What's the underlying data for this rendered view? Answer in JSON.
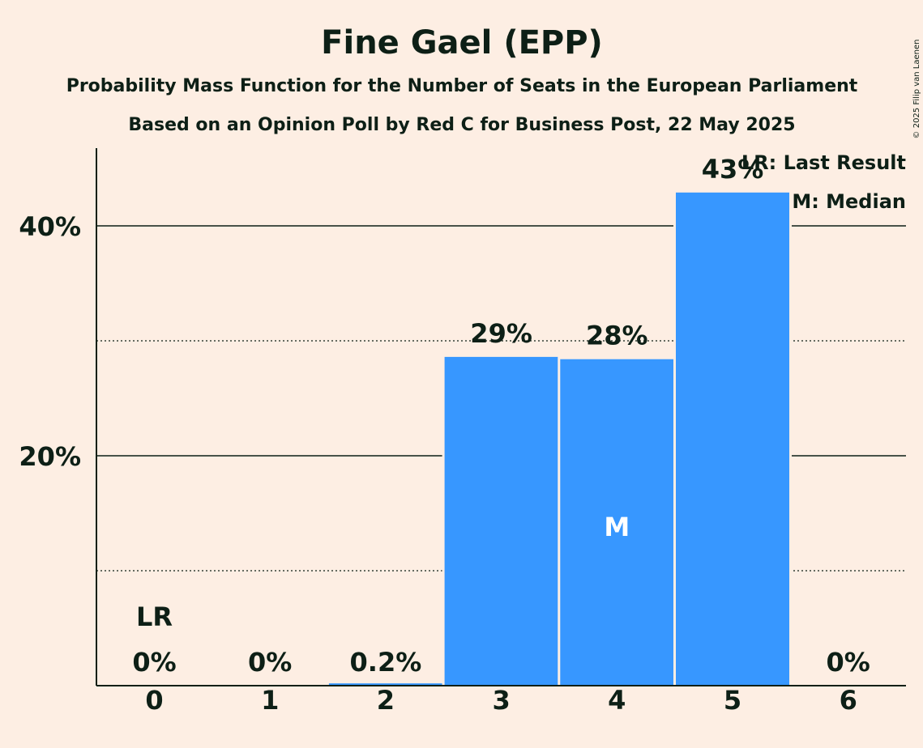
{
  "chart_data": {
    "type": "bar",
    "title": "Fine Gael (EPP)",
    "subtitle_1": "Probability Mass Function for the Number of Seats in the European Parliament",
    "subtitle_2": "Based on an Opinion Poll by Red C for Business Post, 22 May 2025",
    "categories": [
      "0",
      "1",
      "2",
      "3",
      "4",
      "5",
      "6"
    ],
    "values": [
      0,
      0,
      0.2,
      28.6,
      28.4,
      42.9,
      0
    ],
    "value_labels": [
      "0%",
      "0%",
      "0.2%",
      "29%",
      "28%",
      "43%",
      "0%"
    ],
    "ylim": [
      0,
      47
    ],
    "yticks": [
      {
        "value": 20,
        "label": "20%"
      },
      {
        "value": 40,
        "label": "40%"
      }
    ],
    "minor_gridlines": [
      10,
      30
    ],
    "last_result": {
      "category": "0",
      "label": "LR"
    },
    "median": {
      "category": "4",
      "label": "M"
    },
    "legend": [
      "LR: Last Result",
      "M: Median"
    ],
    "legend_position": "top-right",
    "bar_color": "#3797FF",
    "background": "#FDEEE3",
    "text_color": "#0D1F16",
    "copyright": "© 2025 Filip van Laenen"
  }
}
